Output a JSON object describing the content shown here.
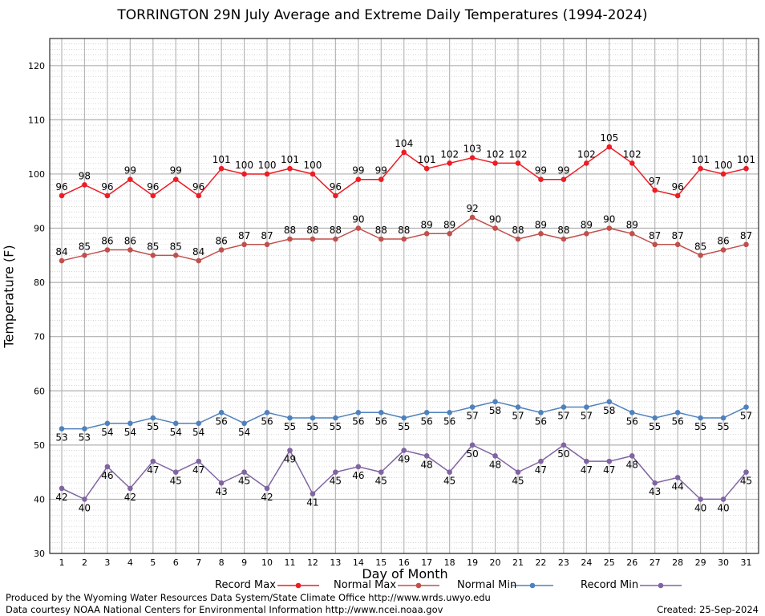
{
  "chart_data": {
    "type": "line",
    "title": "TORRINGTON 29N July Average and Extreme Daily Temperatures (1994-2024)",
    "xlabel": "Day of Month",
    "ylabel": "Temperature (F)",
    "ylim": [
      30,
      125
    ],
    "yticks": [
      30,
      40,
      50,
      60,
      70,
      80,
      90,
      100,
      110,
      120
    ],
    "grid": true,
    "legend_position": "bottom",
    "x": [
      1,
      2,
      3,
      4,
      5,
      6,
      7,
      8,
      9,
      10,
      11,
      12,
      13,
      14,
      15,
      16,
      17,
      18,
      19,
      20,
      21,
      22,
      23,
      24,
      25,
      26,
      27,
      28,
      29,
      30,
      31
    ],
    "series": [
      {
        "name": "Record Max",
        "color": "#ee1c24",
        "label_side": "above",
        "values": [
          96,
          98,
          96,
          99,
          96,
          99,
          96,
          101,
          100,
          100,
          101,
          100,
          96,
          99,
          99,
          104,
          101,
          102,
          103,
          102,
          102,
          99,
          99,
          102,
          105,
          102,
          97,
          96,
          101,
          100,
          101
        ]
      },
      {
        "name": "Normal Max",
        "color": "#c0504d",
        "label_side": "above",
        "values": [
          84,
          85,
          86,
          86,
          85,
          85,
          84,
          86,
          87,
          87,
          88,
          88,
          88,
          90,
          88,
          88,
          89,
          89,
          92,
          90,
          88,
          89,
          88,
          89,
          90,
          89,
          87,
          87,
          85,
          86,
          87
        ]
      },
      {
        "name": "Normal Min",
        "color": "#4f81bd",
        "label_side": "below",
        "values": [
          53,
          53,
          54,
          54,
          55,
          54,
          54,
          56,
          54,
          56,
          55,
          55,
          55,
          56,
          56,
          55,
          56,
          56,
          57,
          58,
          57,
          56,
          57,
          57,
          58,
          56,
          55,
          56,
          55,
          55,
          57
        ]
      },
      {
        "name": "Record Min",
        "color": "#8064a2",
        "label_side": "below",
        "values": [
          42,
          40,
          46,
          42,
          47,
          45,
          47,
          43,
          45,
          42,
          49,
          41,
          45,
          46,
          45,
          49,
          48,
          45,
          50,
          48,
          45,
          47,
          50,
          47,
          47,
          48,
          43,
          44,
          40,
          40,
          45
        ]
      }
    ]
  },
  "footer": {
    "produced_by": "Produced by the Wyoming Water Resources Data System/State Climate Office http://www.wrds.uwyo.edu",
    "courtesy": "Data courtesy NOAA National Centers for Environmental Information http://www.ncei.noaa.gov",
    "created": "Created:  25-Sep-2024"
  }
}
